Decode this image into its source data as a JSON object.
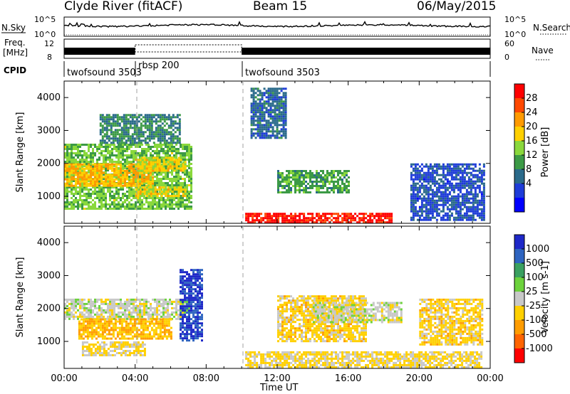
{
  "header": {
    "station": "Clyde River (fitACF)",
    "beam": "Beam 15",
    "date": "06/May/2015"
  },
  "top_panels": {
    "nsky_label": "N.Sky",
    "nsky_ticks": [
      "10^5",
      "10^0"
    ],
    "nsearch_label": "N.Search",
    "nsearch_ticks": [
      "10^5",
      "10^0"
    ],
    "freq_label_1": "Freq.",
    "freq_label_2": "[MHz]",
    "freq_ticks": [
      "12",
      "8"
    ],
    "nave_label": "Nave",
    "nave_ticks": [
      "60",
      "0"
    ],
    "cpid_label": "CPID",
    "cpid_segments": [
      {
        "name": "twofsound 3503",
        "start_hour": 0,
        "end_hour": 4.0
      },
      {
        "name": "rbsp 200",
        "start_hour": 4.0,
        "end_hour": 10.0
      },
      {
        "name": "twofsound 3503",
        "start_hour": 10.0,
        "end_hour": 24.0
      }
    ]
  },
  "power_colorbar": {
    "label": "Power [dB]",
    "ticks": [
      "28",
      "24",
      "20",
      "16",
      "12",
      "8",
      "4"
    ],
    "colors": [
      "#ff0000",
      "#ff4800",
      "#ff9a00",
      "#ffd000",
      "#8ad83c",
      "#3c9a46",
      "#2a6a8a",
      "#1e3cd8",
      "#0000ff"
    ]
  },
  "velocity_colorbar": {
    "label": "Velocity [m s-1]",
    "ticks": [
      "1000",
      "500",
      "100",
      "25",
      "-25",
      "-100",
      "-500",
      "-1000"
    ],
    "colors": [
      "#1e28c8",
      "#2e64c0",
      "#3aa060",
      "#6cd23c",
      "#c8c8c8",
      "#ffd000",
      "#ff9c00",
      "#ff6400",
      "#ff0000"
    ]
  },
  "axes": {
    "ylabel": "Slant Range [km]",
    "yticks": [
      "4000",
      "3000",
      "2000",
      "1000"
    ],
    "xticks": [
      "00:00",
      "04:00",
      "08:00",
      "12:00",
      "16:00",
      "20:00",
      "00:00"
    ],
    "xlabel": "Time UT"
  },
  "chart_data": [
    {
      "type": "heatmap",
      "title": "Power",
      "xlabel": "Time UT",
      "ylabel": "Slant Range [km]",
      "xlim": [
        0,
        24
      ],
      "ylim": [
        180,
        4500
      ],
      "zlabel": "Power [dB]",
      "zlim": [
        0,
        30
      ],
      "regions": [
        {
          "t0": 0.0,
          "t1": 7.2,
          "r0": 600,
          "r1": 2600,
          "value": 14
        },
        {
          "t0": 0.0,
          "t1": 5.0,
          "r0": 1300,
          "r1": 2000,
          "value": 20
        },
        {
          "t0": 4.0,
          "t1": 6.8,
          "r0": 1000,
          "r1": 1300,
          "value": 18
        },
        {
          "t0": 4.0,
          "t1": 6.8,
          "r0": 1800,
          "r1": 2200,
          "value": 18
        },
        {
          "t0": 2.0,
          "t1": 6.5,
          "r0": 2600,
          "r1": 3500,
          "value": 10
        },
        {
          "t0": 10.2,
          "t1": 18.5,
          "r0": 180,
          "r1": 500,
          "value": 28
        },
        {
          "t0": 12.0,
          "t1": 16.0,
          "r0": 1100,
          "r1": 1800,
          "value": 12
        },
        {
          "t0": 10.5,
          "t1": 12.5,
          "r0": 2800,
          "r1": 4300,
          "value": 8
        },
        {
          "t0": 19.5,
          "t1": 23.6,
          "r0": 300,
          "r1": 2000,
          "value": 6
        }
      ]
    },
    {
      "type": "heatmap",
      "title": "Velocity",
      "xlabel": "Time UT",
      "ylabel": "Slant Range [km]",
      "xlim": [
        0,
        24
      ],
      "ylim": [
        180,
        4500
      ],
      "zlabel": "Velocity [m s-1]",
      "zlim": [
        -1000,
        1000
      ],
      "regions": [
        {
          "t0": 0.0,
          "t1": 7.0,
          "r0": 1700,
          "r1": 2300,
          "value": 0
        },
        {
          "t0": 0.8,
          "t1": 6.0,
          "r0": 1100,
          "r1": 1700,
          "value": -300
        },
        {
          "t0": 1.0,
          "t1": 4.5,
          "r0": 600,
          "r1": 1000,
          "value": -150
        },
        {
          "t0": 6.5,
          "t1": 7.8,
          "r0": 1000,
          "r1": 3200,
          "value": 800
        },
        {
          "t0": 10.2,
          "t1": 23.5,
          "r0": 180,
          "r1": 700,
          "value": -150
        },
        {
          "t0": 12.0,
          "t1": 17.0,
          "r0": 1000,
          "r1": 2400,
          "value": -200
        },
        {
          "t0": 14.0,
          "t1": 19.0,
          "r0": 1600,
          "r1": 2200,
          "value": 0
        },
        {
          "t0": 20.0,
          "t1": 23.5,
          "r0": 900,
          "r1": 2300,
          "value": -200
        }
      ]
    }
  ]
}
